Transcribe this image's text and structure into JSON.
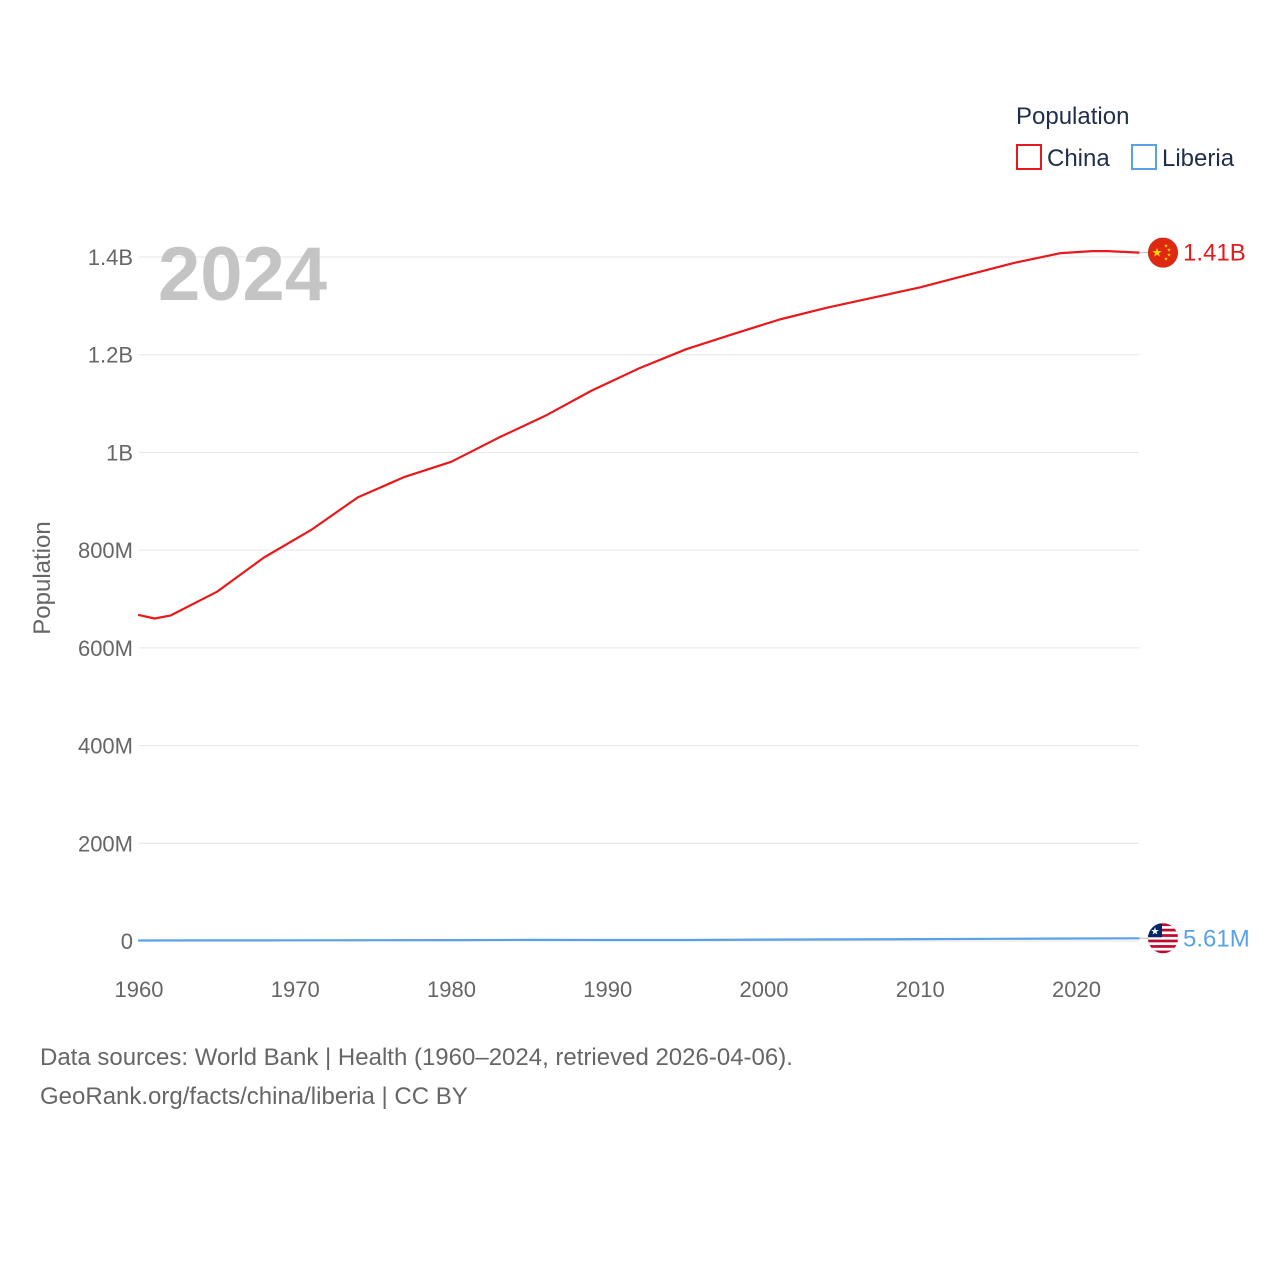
{
  "chart_data": {
    "type": "line",
    "year_label": "2024",
    "legend": {
      "title": "Population",
      "entries": [
        "China",
        "Liberia"
      ]
    },
    "ylabel": "Population",
    "xlabel": "",
    "xlim": [
      1960,
      2024
    ],
    "ylim": [
      0,
      1400000000
    ],
    "x_ticks": [
      {
        "value": 1960,
        "label": "1960"
      },
      {
        "value": 1970,
        "label": "1970"
      },
      {
        "value": 1980,
        "label": "1980"
      },
      {
        "value": 1990,
        "label": "1990"
      },
      {
        "value": 2000,
        "label": "2000"
      },
      {
        "value": 2010,
        "label": "2010"
      },
      {
        "value": 2020,
        "label": "2020"
      }
    ],
    "y_ticks": [
      {
        "value": 0,
        "label": "0"
      },
      {
        "value": 200000000,
        "label": "200M"
      },
      {
        "value": 400000000,
        "label": "400M"
      },
      {
        "value": 600000000,
        "label": "600M"
      },
      {
        "value": 800000000,
        "label": "800M"
      },
      {
        "value": 1000000000,
        "label": "1B"
      },
      {
        "value": 1200000000,
        "label": "1.2B"
      },
      {
        "value": 1400000000,
        "label": "1.4B"
      }
    ],
    "grid": true,
    "series": [
      {
        "name": "China",
        "color": "#e8191c",
        "end_label": "1.41B",
        "flag_icon": "china-flag-icon",
        "x": [
          1960,
          1961,
          1962,
          1965,
          1968,
          1971,
          1974,
          1977,
          1980,
          1983,
          1986,
          1989,
          1992,
          1995,
          1998,
          2001,
          2004,
          2007,
          2010,
          2013,
          2016,
          2019,
          2021,
          2022,
          2024
        ],
        "y": [
          667000000,
          660000000,
          666000000,
          715000000,
          785000000,
          841000000,
          908000000,
          950000000,
          981000000,
          1030000000,
          1075000000,
          1127000000,
          1172000000,
          1211000000,
          1242000000,
          1272000000,
          1296000000,
          1317000000,
          1338000000,
          1363000000,
          1388000000,
          1408000000,
          1412000000,
          1412000000,
          1409000000
        ]
      },
      {
        "name": "Liberia",
        "color": "#5aa2e6",
        "end_label": "5.61M",
        "flag_icon": "liberia-flag-icon",
        "x": [
          1960,
          1965,
          1970,
          1975,
          1980,
          1985,
          1990,
          1995,
          2000,
          2005,
          2010,
          2015,
          2020,
          2024
        ],
        "y": [
          1120000,
          1280000,
          1450000,
          1690000,
          1940000,
          2210000,
          2100000,
          2080000,
          2890000,
          3300000,
          3890000,
          4500000,
          5090000,
          5610000
        ]
      }
    ]
  },
  "footer": {
    "line1": "Data sources: World Bank | Health (1960–2024, retrieved 2026-04-06).",
    "line2": "GeoRank.org/facts/china/liberia | CC BY"
  }
}
